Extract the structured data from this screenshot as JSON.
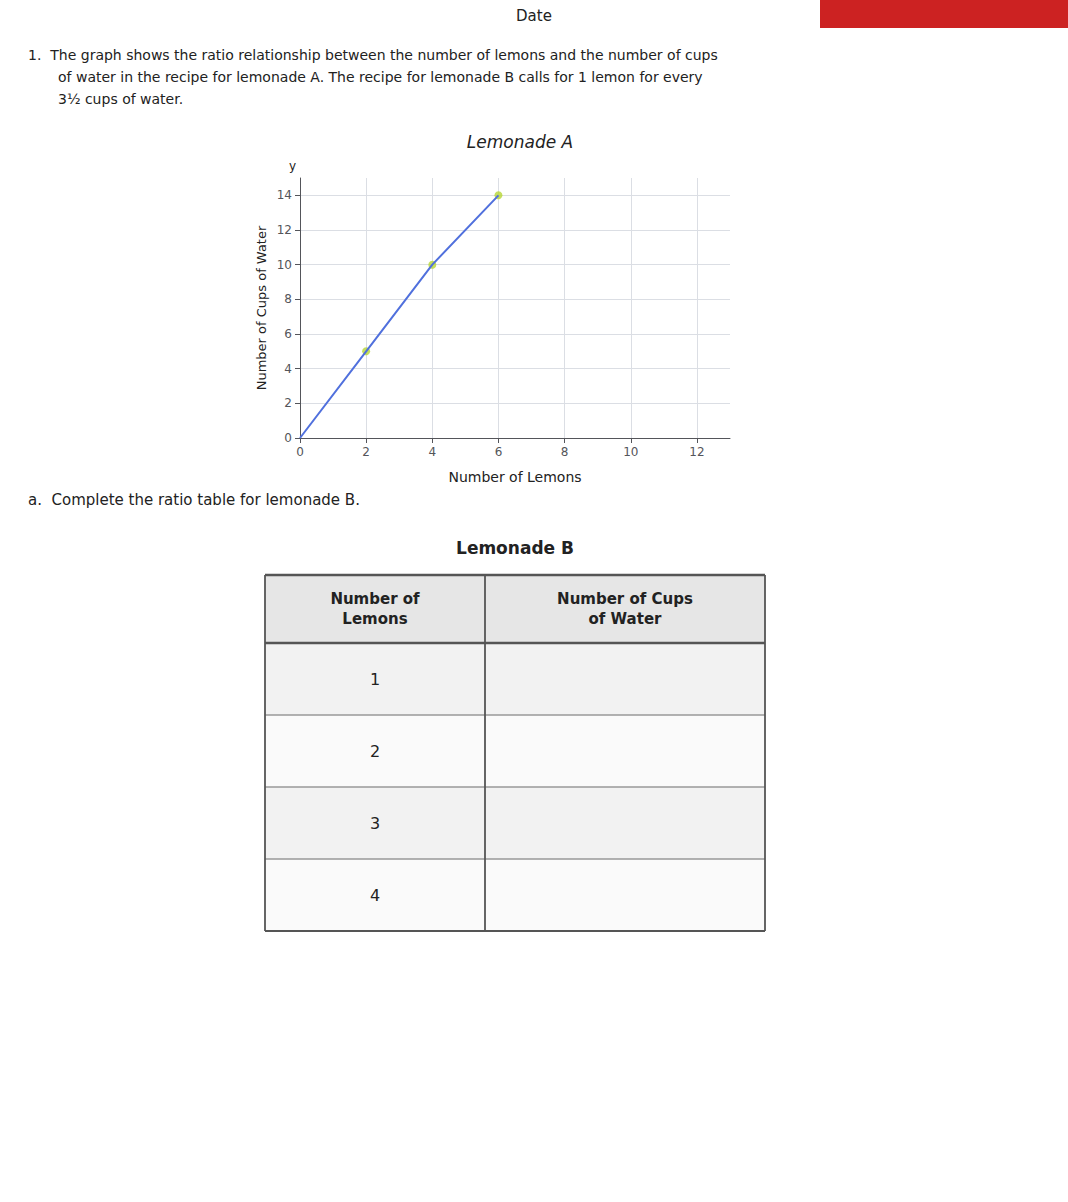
{
  "chart_data": [
    {
      "type": "line",
      "title": "Lemonade A",
      "xlabel": "Number of Lemons",
      "ylabel": "Number of Cups of Water",
      "xlim": [
        0,
        13
      ],
      "ylim": [
        0,
        15
      ],
      "xticks": [
        0,
        2,
        4,
        6,
        8,
        10,
        12
      ],
      "yticks": [
        0,
        2,
        4,
        6,
        8,
        10,
        12,
        14
      ],
      "grid": true,
      "series": [
        {
          "type": "line",
          "x": [
            0,
            2,
            4,
            6
          ],
          "values": [
            0,
            5,
            10,
            14
          ]
        },
        {
          "type": "scatter",
          "x": [
            2,
            4,
            6
          ],
          "values": [
            5,
            10,
            14
          ]
        }
      ],
      "annotations": [
        "Date",
        "1.  The graph shows the ratio relationship between the number of lemons and the number of cups",
        "of water in the recipe for lemonade A. The recipe for lemonade B calls for 1 lemon for every",
        "3½ cups of water.",
        "y",
        "a.  Complete the ratio table for lemonade B."
      ]
    },
    {
      "type": "table",
      "title": "Lemonade B",
      "columns": [
        [
          "Number of",
          "Lemons"
        ],
        [
          "Number of Cups",
          "of Water"
        ]
      ],
      "rows": [
        [
          1,
          null
        ],
        [
          2,
          null
        ],
        [
          3,
          null
        ],
        [
          4,
          null
        ]
      ]
    }
  ]
}
